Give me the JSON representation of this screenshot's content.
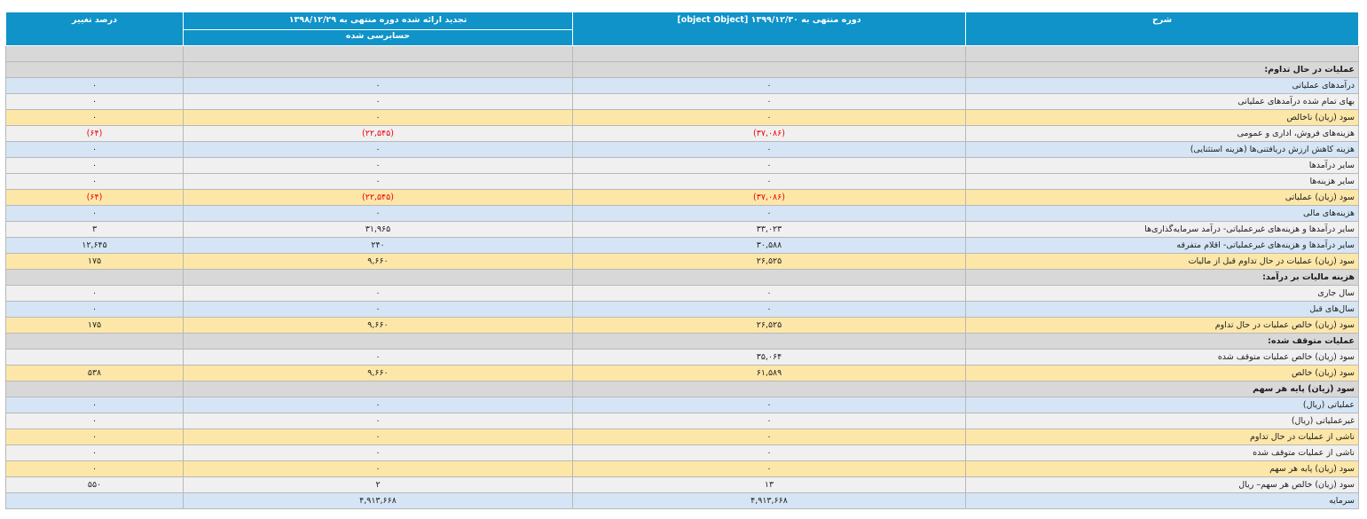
{
  "headers": {
    "description": "شرح",
    "current": "دوره منتهی به ۱۳۹۹/۱۲/۳۰ [object Object]",
    "previous": "تجدید ارائه شده دوره منتهی به ۱۳۹۸/۱۲/۲۹",
    "previous_sub": "حسابرسی شده",
    "change": "درصد تغییر"
  },
  "rows": [
    {
      "type": "sec",
      "desc": "",
      "cur": "",
      "prev": "",
      "pct": ""
    },
    {
      "type": "sec",
      "desc": "عملیات در حال تداوم:",
      "cur": "",
      "prev": "",
      "pct": ""
    },
    {
      "type": "blue",
      "desc": "درآمدهای عملیاتی",
      "cur": "۰",
      "prev": "۰",
      "pct": "۰"
    },
    {
      "type": "gray",
      "desc": "بهای تمام شده درآمدهای عملیاتی",
      "cur": "۰",
      "prev": "۰",
      "pct": "۰"
    },
    {
      "type": "yellow",
      "desc": "سود (زیان) ناخالص",
      "cur": "۰",
      "prev": "۰",
      "pct": "۰"
    },
    {
      "type": "gray",
      "desc": "هزینه‌های فروش، اداری و عمومی",
      "cur": "(۳۷,۰۸۶)",
      "prev": "(۲۲,۵۴۵)",
      "pct": "(۶۴)",
      "neg": true
    },
    {
      "type": "blue",
      "desc": "هزینه کاهش ارزش دریافتنی‌ها (هزینه استثنایی)",
      "cur": "۰",
      "prev": "۰",
      "pct": "۰"
    },
    {
      "type": "gray",
      "desc": "سایر درآمدها",
      "cur": "۰",
      "prev": "۰",
      "pct": "۰"
    },
    {
      "type": "gray",
      "desc": "سایر هزینه‌ها",
      "cur": "۰",
      "prev": "۰",
      "pct": "۰"
    },
    {
      "type": "yellow",
      "desc": "سود (زیان) عملیاتی",
      "cur": "(۳۷,۰۸۶)",
      "prev": "(۲۲,۵۴۵)",
      "pct": "(۶۴)",
      "neg": true
    },
    {
      "type": "blue",
      "desc": "هزینه‌های مالی",
      "cur": "۰",
      "prev": "۰",
      "pct": "۰"
    },
    {
      "type": "gray",
      "desc": "سایر درآمدها و هزینه‌های غیرعملیاتی- درآمد سرمایه‌گذاری‌ها",
      "cur": "۳۳,۰۲۳",
      "prev": "۳۱,۹۶۵",
      "pct": "۳"
    },
    {
      "type": "blue",
      "desc": "سایر درآمدها و هزینه‌های غیرعملیاتی- اقلام متفرقه",
      "cur": "۳۰,۵۸۸",
      "prev": "۲۴۰",
      "pct": "۱۲,۶۴۵"
    },
    {
      "type": "yellow",
      "desc": "سود (زیان) عملیات در حال تداوم قبل از مالیات",
      "cur": "۲۶,۵۲۵",
      "prev": "۹,۶۶۰",
      "pct": "۱۷۵"
    },
    {
      "type": "sec",
      "desc": "هزینه مالیات بر درآمد:",
      "cur": "",
      "prev": "",
      "pct": ""
    },
    {
      "type": "gray",
      "desc": "سال جاری",
      "cur": "۰",
      "prev": "۰",
      "pct": "۰"
    },
    {
      "type": "blue",
      "desc": "سال‌های قبل",
      "cur": "۰",
      "prev": "۰",
      "pct": "۰"
    },
    {
      "type": "yellow",
      "desc": "سود (زیان) خالص عملیات در حال تداوم",
      "cur": "۲۶,۵۲۵",
      "prev": "۹,۶۶۰",
      "pct": "۱۷۵"
    },
    {
      "type": "sec",
      "desc": "عملیات متوقف شده:",
      "cur": "",
      "prev": "",
      "pct": ""
    },
    {
      "type": "gray",
      "desc": "سود (زیان) خالص عملیات متوقف شده",
      "cur": "۳۵,۰۶۴",
      "prev": "۰",
      "pct": ""
    },
    {
      "type": "yellow",
      "desc": "سود (زیان) خالص",
      "cur": "۶۱,۵۸۹",
      "prev": "۹,۶۶۰",
      "pct": "۵۳۸"
    },
    {
      "type": "sec",
      "desc": "سود (زیان) پایه هر سهم",
      "cur": "",
      "prev": "",
      "pct": ""
    },
    {
      "type": "blue",
      "desc": "عملیاتی (ریال)",
      "cur": "۰",
      "prev": "۰",
      "pct": "۰"
    },
    {
      "type": "gray",
      "desc": "غیرعملیاتی (ریال)",
      "cur": "۰",
      "prev": "۰",
      "pct": "۰"
    },
    {
      "type": "yellow",
      "desc": "ناشی از عملیات در حال تداوم",
      "cur": "۰",
      "prev": "۰",
      "pct": "۰"
    },
    {
      "type": "gray",
      "desc": "ناشی از عملیات متوقف شده",
      "cur": "۰",
      "prev": "۰",
      "pct": "۰"
    },
    {
      "type": "yellow",
      "desc": "سود (زیان) پایه هر سهم",
      "cur": "۰",
      "prev": "۰",
      "pct": "۰"
    },
    {
      "type": "gray",
      "desc": "سود (زیان) خالص هر سهم– ریال",
      "cur": "۱۳",
      "prev": "۲",
      "pct": "۵۵۰"
    },
    {
      "type": "blue",
      "desc": "سرمایه",
      "cur": "۴,۹۱۳,۶۶۸",
      "prev": "۴,۹۱۳,۶۶۸",
      "pct": ""
    }
  ]
}
